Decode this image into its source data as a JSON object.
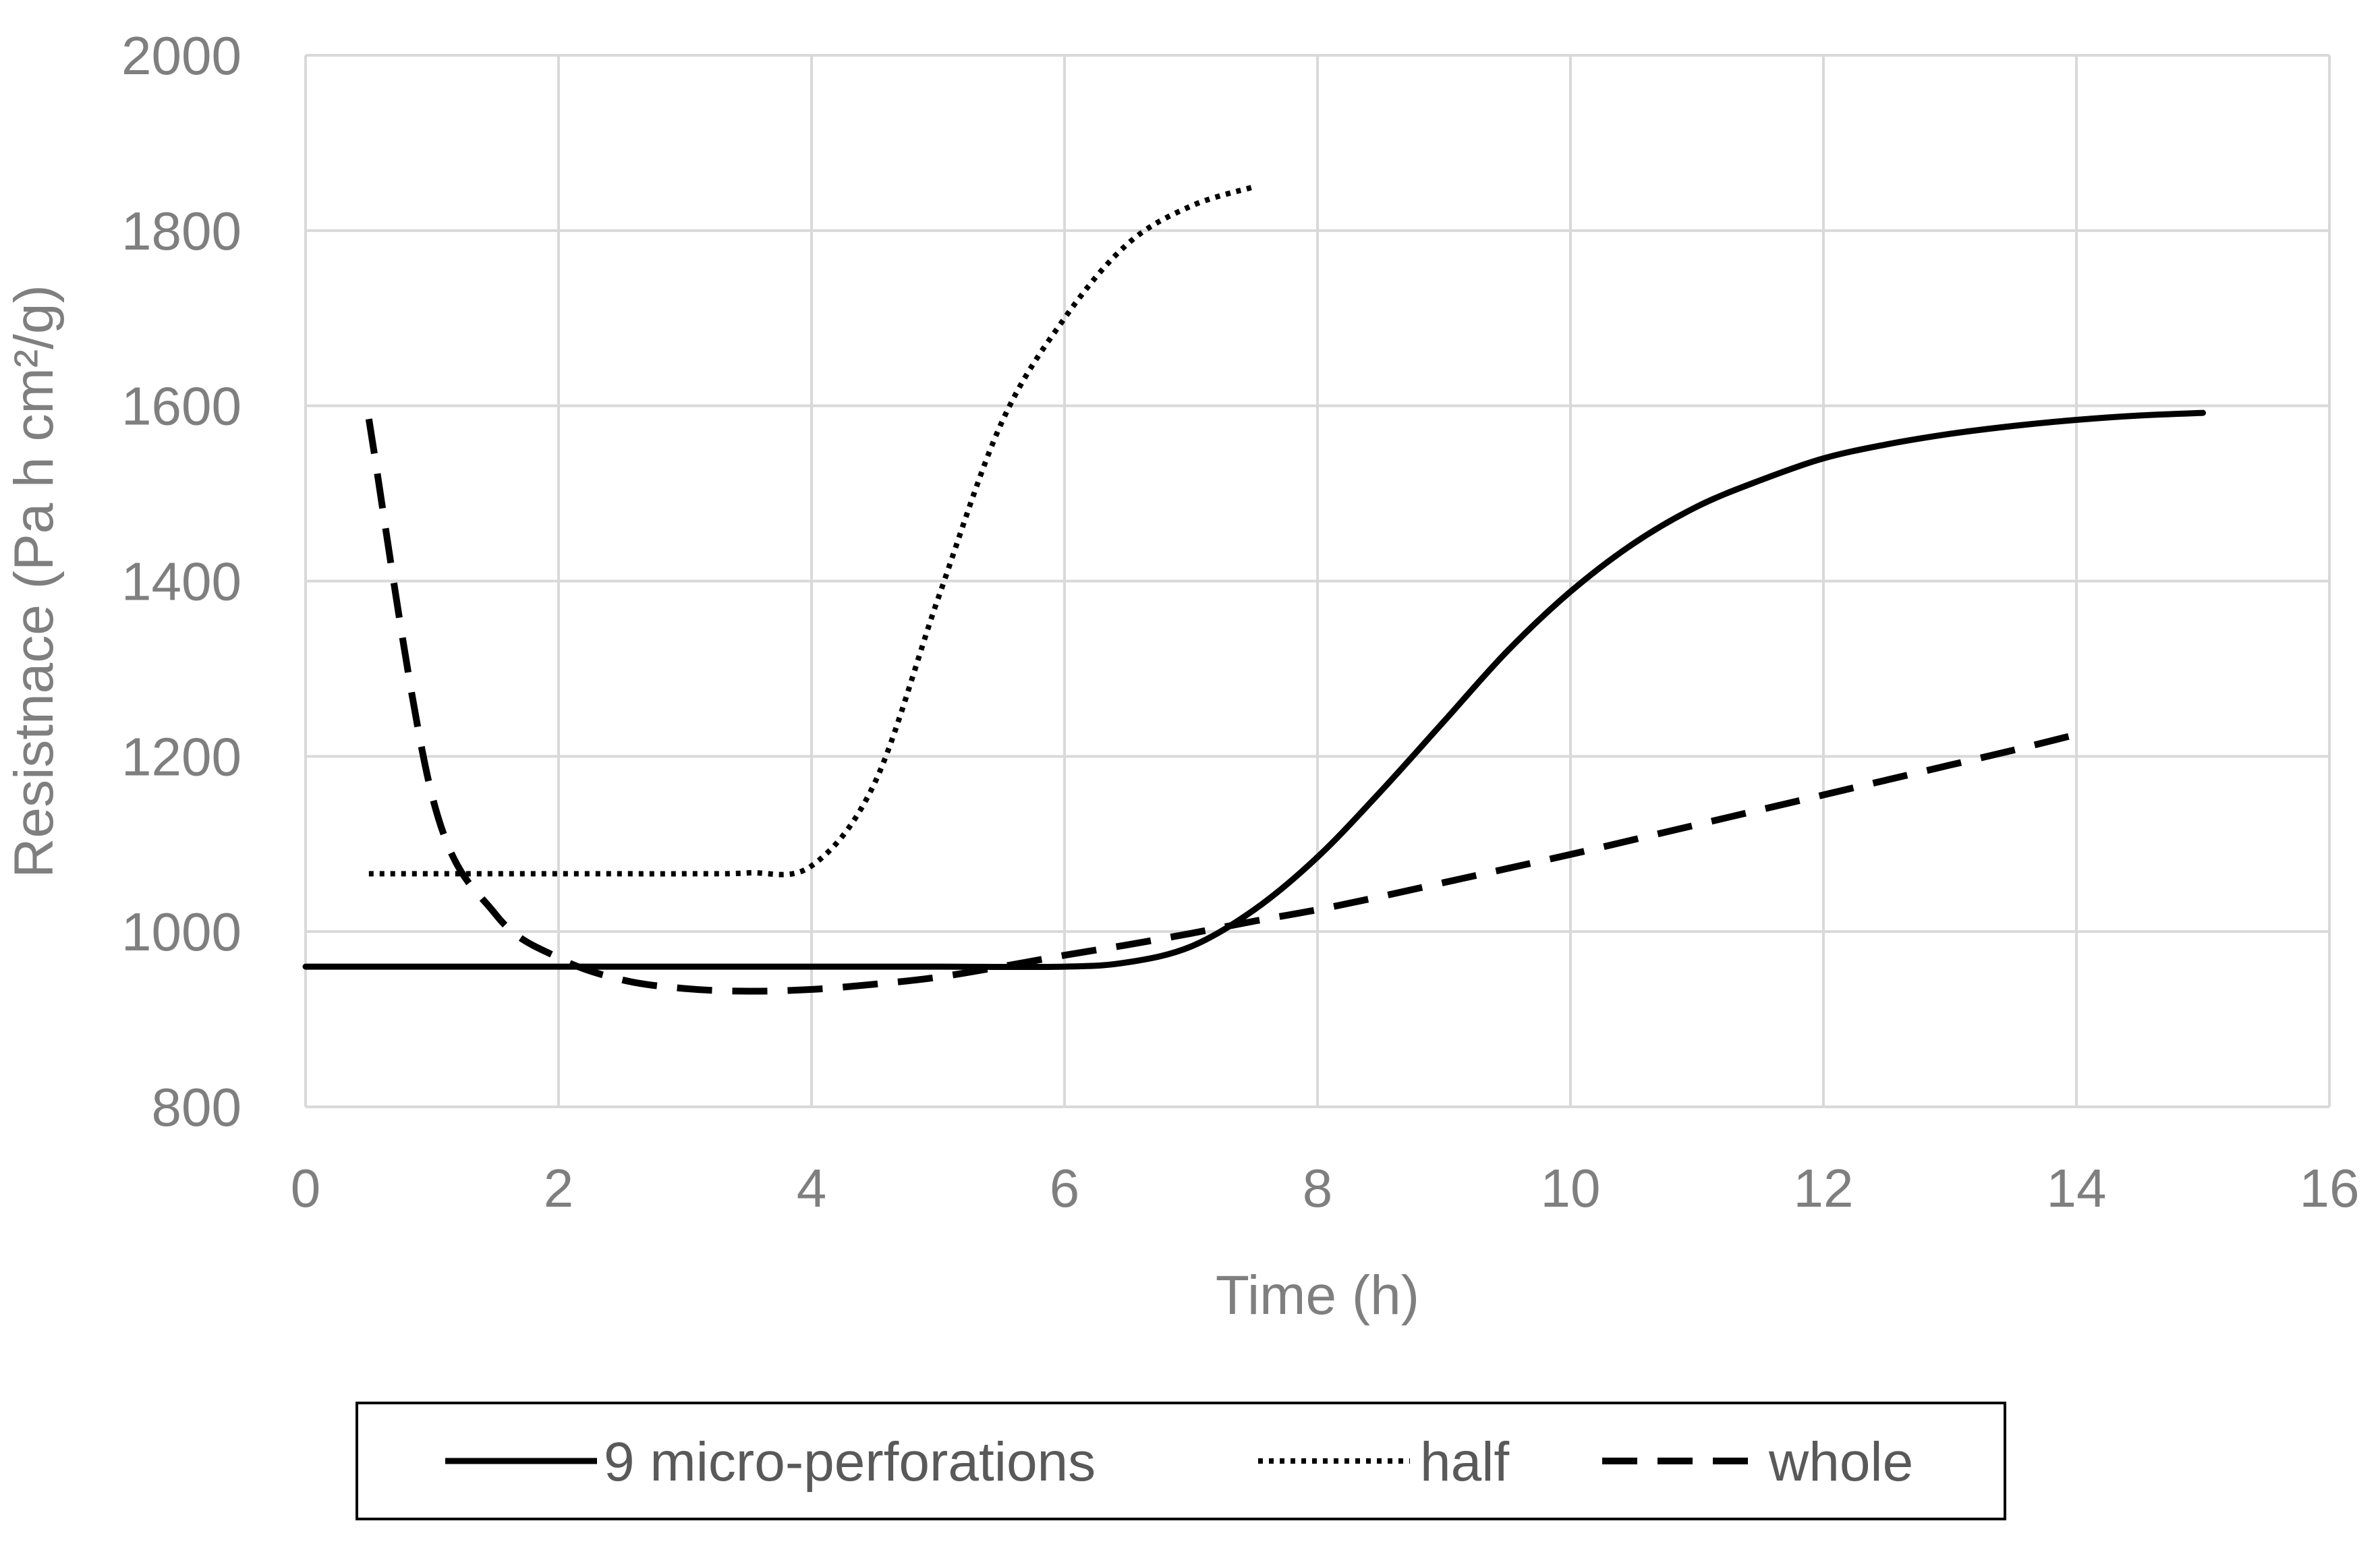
{
  "chart_data": {
    "type": "line",
    "title": "",
    "xlabel": "Time (h)",
    "ylabel": "Resistnace (Pa h cm²/g)",
    "xlim": [
      0,
      16
    ],
    "ylim": [
      800,
      2000
    ],
    "xticks": [
      0,
      2,
      4,
      6,
      8,
      10,
      12,
      14,
      16
    ],
    "yticks": [
      800,
      1000,
      1200,
      1400,
      1600,
      1800,
      2000
    ],
    "grid": true,
    "legend_position": "bottom",
    "series": [
      {
        "name": "9 micro-perforations",
        "style": "solid",
        "color": "#000000",
        "x": [
          0,
          1,
          2,
          3,
          4,
          5,
          6,
          6.5,
          7,
          7.5,
          8,
          8.5,
          9,
          9.5,
          10,
          10.5,
          11,
          11.5,
          12,
          12.5,
          13,
          13.5,
          14,
          14.5,
          15
        ],
        "y": [
          960,
          960,
          960,
          960,
          960,
          960,
          960,
          965,
          983,
          1025,
          1085,
          1160,
          1240,
          1320,
          1388,
          1443,
          1485,
          1515,
          1540,
          1556,
          1568,
          1577,
          1584,
          1589,
          1592
        ]
      },
      {
        "name": "half",
        "style": "dotted",
        "color": "#000000",
        "x": [
          0.5,
          1,
          1.5,
          2,
          2.5,
          3,
          3.5,
          4,
          4.5,
          5,
          5.5,
          6,
          6.5,
          7,
          7.5
        ],
        "y": [
          1066,
          1066,
          1066,
          1066,
          1066,
          1066,
          1067,
          1075,
          1170,
          1380,
          1580,
          1700,
          1785,
          1828,
          1850
        ]
      },
      {
        "name": "whole",
        "style": "dashed",
        "color": "#000000",
        "x": [
          0.5,
          1,
          1.5,
          2,
          2.5,
          3,
          3.5,
          4,
          4.5,
          5,
          5.5,
          6,
          6.5,
          7,
          7.5,
          8,
          8.5,
          9,
          9.5,
          10,
          10.5,
          11,
          11.5,
          12,
          12.5,
          13,
          13.5,
          14
        ],
        "y": [
          1585,
          1155,
          1020,
          970,
          945,
          935,
          932,
          934,
          940,
          948,
          960,
          973,
          985,
          998,
          1012,
          1025,
          1040,
          1056,
          1072,
          1088,
          1105,
          1122,
          1139,
          1156,
          1173,
          1190,
          1207,
          1225
        ]
      }
    ]
  }
}
